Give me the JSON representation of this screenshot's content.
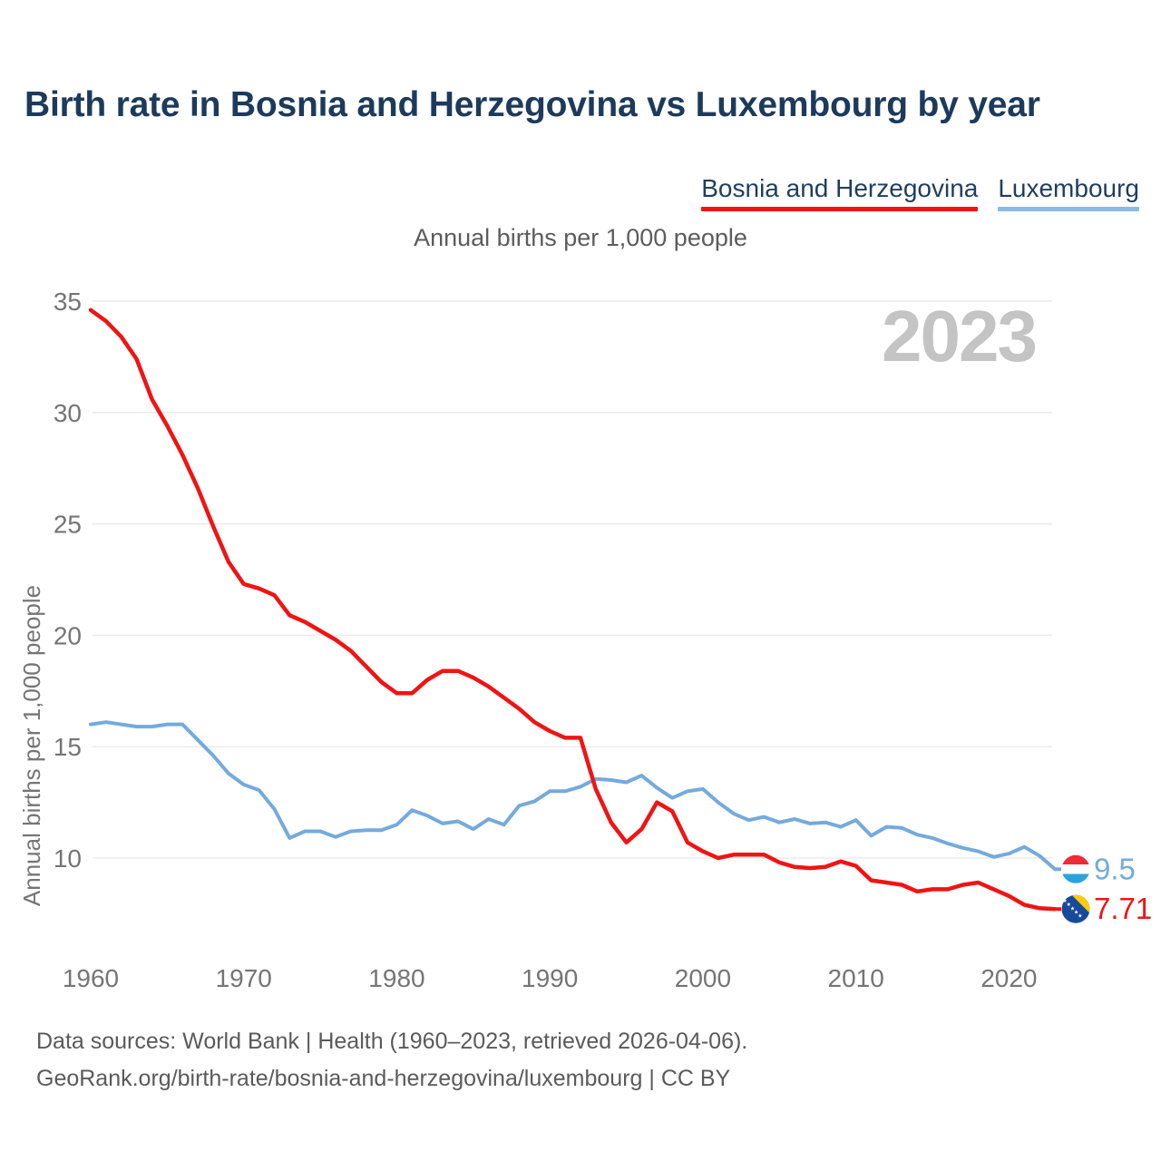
{
  "header": {
    "title": "Birth rate in Bosnia and Herzegovina vs Luxembourg by year"
  },
  "legend": {
    "items": [
      {
        "label": "Bosnia and Herzegovina",
        "underline_color": "#f01414"
      },
      {
        "label": "Luxembourg",
        "underline_color": "#8abae6"
      }
    ]
  },
  "subtitle": "Annual births per 1,000 people",
  "watermark": "2023",
  "footer": {
    "line1": "Data sources: World Bank | Health (1960–2023, retrieved 2026-04-06).",
    "line2": "GeoRank.org/birth-rate/bosnia-and-herzegovina/luxembourg | CC BY"
  },
  "chart_data": {
    "type": "line",
    "title": "Birth rate in Bosnia and Herzegovina vs Luxembourg by year",
    "ylabel": "Annual births per 1,000 people",
    "xlabel": "",
    "x_start_year": 1960,
    "x_end_year": 2023,
    "xticks": [
      1960,
      1970,
      1980,
      1990,
      2000,
      2010,
      2020
    ],
    "yticks": [
      10,
      15,
      20,
      25,
      30,
      35
    ],
    "grid": "horizontal",
    "legend_position": "top-right",
    "watermark": "2023",
    "tick_color": "#757575",
    "grid_color": "#ebebeb",
    "watermark_color": "#c4c4c4",
    "series": [
      {
        "name": "Bosnia and Herzegovina",
        "color": "#f01414",
        "end_label": "7.71",
        "flag": "bosnia-and-herzegovina",
        "values": [
          34.6,
          34.1,
          33.4,
          32.4,
          30.6,
          29.4,
          28.1,
          26.6,
          24.9,
          23.3,
          22.3,
          22.1,
          21.8,
          20.9,
          20.6,
          20.2,
          19.8,
          19.3,
          18.6,
          17.9,
          17.4,
          17.4,
          18.0,
          18.4,
          18.4,
          18.1,
          17.7,
          17.2,
          16.7,
          16.1,
          15.7,
          15.4,
          15.4,
          13.1,
          11.6,
          10.7,
          11.3,
          12.5,
          12.1,
          10.7,
          10.3,
          10.0,
          10.15,
          10.15,
          10.15,
          9.8,
          9.6,
          9.55,
          9.6,
          9.85,
          9.65,
          9.0,
          8.9,
          8.8,
          8.5,
          8.6,
          8.6,
          8.8,
          8.9,
          8.6,
          8.3,
          7.9,
          7.75,
          7.71
        ]
      },
      {
        "name": "Luxembourg",
        "color": "#74aadd",
        "end_label": "9.5",
        "flag": "luxembourg",
        "values": [
          16.0,
          16.1,
          16.0,
          15.9,
          15.9,
          16.0,
          16.0,
          15.3,
          14.6,
          13.8,
          13.3,
          13.05,
          12.2,
          10.9,
          11.2,
          11.2,
          10.95,
          11.2,
          11.25,
          11.25,
          11.5,
          12.15,
          11.9,
          11.55,
          11.65,
          11.3,
          11.75,
          11.5,
          12.35,
          12.55,
          13.0,
          13.0,
          13.2,
          13.55,
          13.5,
          13.4,
          13.7,
          13.15,
          12.7,
          13.0,
          13.1,
          12.5,
          12.0,
          11.7,
          11.85,
          11.6,
          11.75,
          11.55,
          11.6,
          11.4,
          11.7,
          11.0,
          11.4,
          11.35,
          11.05,
          10.9,
          10.65,
          10.45,
          10.3,
          10.05,
          10.2,
          10.5,
          10.1,
          9.5
        ]
      }
    ],
    "flag_colors": {
      "luxembourg": {
        "red": "#ee2a39",
        "white": "#ffffff",
        "blue": "#2aa3dd"
      },
      "bosnia": {
        "blue": "#17499c",
        "yellow": "#fecb00",
        "stars": "#ffffff"
      }
    }
  }
}
